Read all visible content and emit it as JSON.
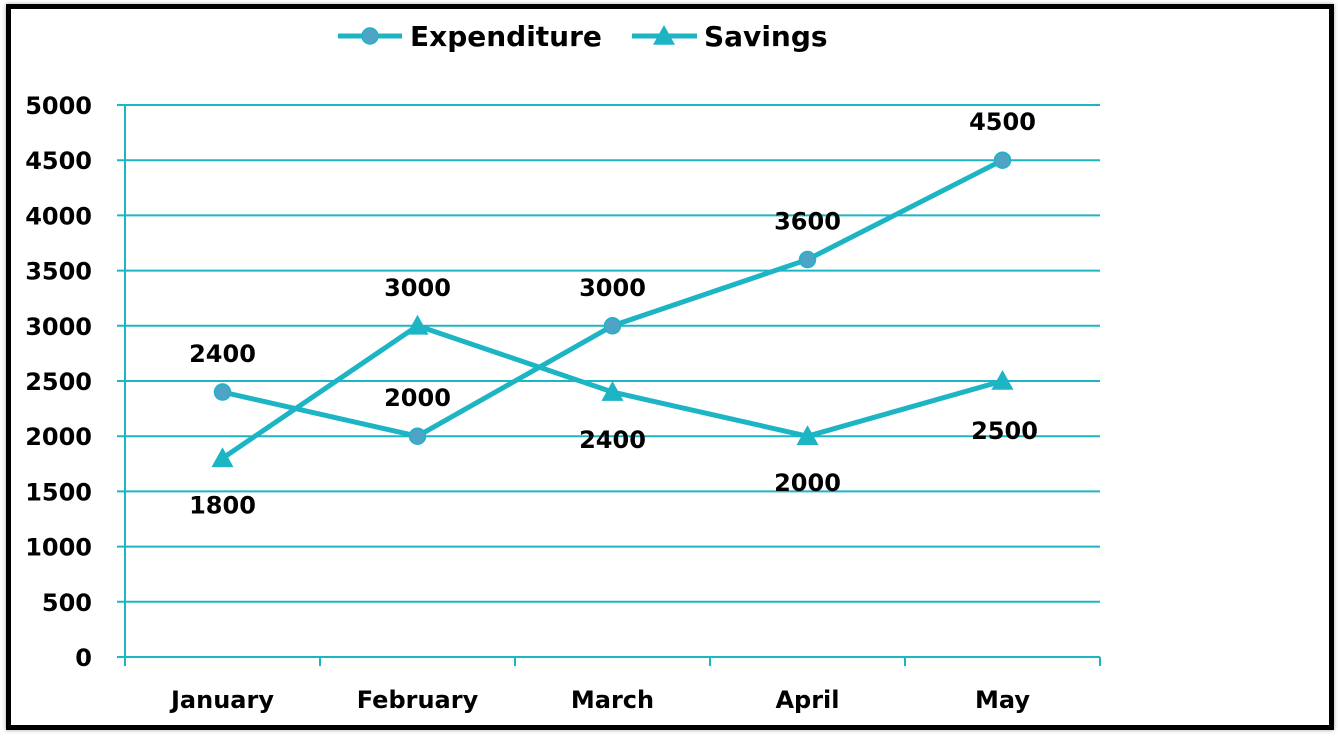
{
  "chart_data": {
    "type": "line",
    "title": "",
    "xlabel": "",
    "ylabel": "",
    "categories": [
      "January",
      "February",
      "March",
      "April",
      "May"
    ],
    "ylim": [
      0,
      5000
    ],
    "yticks": [
      0,
      500,
      1000,
      1500,
      2000,
      2500,
      3000,
      3500,
      4000,
      4500,
      5000
    ],
    "grid": true,
    "legend_position": "top-center",
    "series": [
      {
        "name": "Expenditure",
        "marker": "circle",
        "color": "#1DB5C4",
        "values": [
          2400,
          2000,
          3000,
          3600,
          4500
        ],
        "labels": [
          "2400",
          "2000",
          "3000",
          "3600",
          "4500"
        ]
      },
      {
        "name": "Savings",
        "marker": "triangle",
        "color": "#1DB5C4",
        "values": [
          1800,
          3000,
          2400,
          2000,
          2500
        ],
        "labels": [
          "1800",
          "3000",
          "2400",
          "2000",
          "2500"
        ]
      }
    ]
  },
  "colors": {
    "line": "#1DB5C4",
    "marker_circle": "#4FA3C7",
    "grid": "#1DB5C4",
    "axis": "#1DB5C4",
    "text": "#000000",
    "frame": "#000000"
  }
}
